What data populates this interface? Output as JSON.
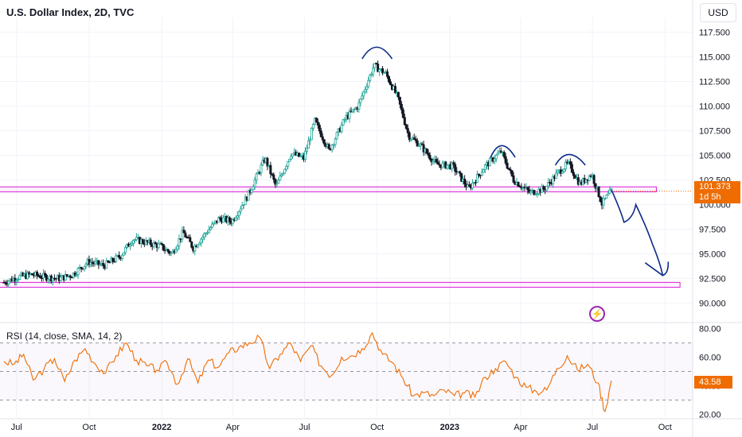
{
  "header": {
    "title": "U.S. Dollar Index, 2D, TVC",
    "currency": "USD"
  },
  "price_tag": {
    "price": "101.373",
    "countdown": "1d 5h"
  },
  "rsi_panel": {
    "title": "RSI (14, close, SMA, 14, 2)",
    "value": "43.58"
  },
  "icons": {
    "event": "lightning-icon"
  },
  "colors": {
    "up": "#26a69a",
    "down": "#131722",
    "rsi": "#ef6c00",
    "zone": "#d81bd8",
    "drawing": "#0d2b8a"
  },
  "chart_data": [
    {
      "type": "candlestick",
      "title": "U.S. Dollar Index, 2D, TVC",
      "y_ticks": [
        "117.500",
        "115.000",
        "112.500",
        "110.000",
        "107.500",
        "105.000",
        "102.500",
        "100.000",
        "97.500",
        "95.000",
        "92.500",
        "90.000"
      ],
      "ylim": [
        88.5,
        119
      ],
      "x_ticks": [
        "Jul",
        "Oct",
        "2022",
        "Apr",
        "Jul",
        "Oct",
        "2023",
        "Apr",
        "Jul",
        "Oct"
      ],
      "x_tick_dates": [
        "2021-07",
        "2021-10",
        "2022-01",
        "2022-04",
        "2022-07",
        "2022-10",
        "2023-01",
        "2023-04",
        "2023-07",
        "2023-10"
      ],
      "last_price": 101.373,
      "close_path": [
        [
          "2021-06-15",
          92.1
        ],
        [
          "2021-07-01",
          92.6
        ],
        [
          "2021-07-20",
          92.9
        ],
        [
          "2021-08-10",
          92.6
        ],
        [
          "2021-08-25",
          92.5
        ],
        [
          "2021-09-10",
          92.9
        ],
        [
          "2021-09-30",
          94.2
        ],
        [
          "2021-10-20",
          93.8
        ],
        [
          "2021-11-10",
          94.8
        ],
        [
          "2021-11-25",
          96.5
        ],
        [
          "2021-12-10",
          96.2
        ],
        [
          "2021-12-30",
          95.8
        ],
        [
          "2022-01-14",
          95.0
        ],
        [
          "2022-01-28",
          97.2
        ],
        [
          "2022-02-10",
          95.6
        ],
        [
          "2022-03-01",
          97.4
        ],
        [
          "2022-03-15",
          98.6
        ],
        [
          "2022-03-31",
          98.3
        ],
        [
          "2022-04-20",
          100.9
        ],
        [
          "2022-05-12",
          104.7
        ],
        [
          "2022-05-26",
          101.8
        ],
        [
          "2022-06-14",
          105.2
        ],
        [
          "2022-06-30",
          104.7
        ],
        [
          "2022-07-14",
          108.5
        ],
        [
          "2022-08-01",
          105.5
        ],
        [
          "2022-08-22",
          108.8
        ],
        [
          "2022-09-07",
          110.0
        ],
        [
          "2022-09-27",
          114.1
        ],
        [
          "2022-10-12",
          113.3
        ],
        [
          "2022-10-27",
          110.9
        ],
        [
          "2022-11-10",
          107.0
        ],
        [
          "2022-11-25",
          106.0
        ],
        [
          "2022-12-15",
          104.1
        ],
        [
          "2023-01-05",
          103.9
        ],
        [
          "2023-01-25",
          101.6
        ],
        [
          "2023-02-15",
          103.9
        ],
        [
          "2023-03-07",
          105.4
        ],
        [
          "2023-03-23",
          102.5
        ],
        [
          "2023-04-13",
          101.2
        ],
        [
          "2023-05-01",
          101.6
        ],
        [
          "2023-05-18",
          103.2
        ],
        [
          "2023-05-31",
          104.2
        ],
        [
          "2023-06-15",
          102.1
        ],
        [
          "2023-06-30",
          103.1
        ],
        [
          "2023-07-13",
          100.1
        ],
        [
          "2023-07-25",
          101.373
        ]
      ],
      "zones": [
        {
          "from": "2021-05-01",
          "to": "2023-09-20",
          "y_top": 101.8,
          "y_bottom": 101.3
        },
        {
          "from": "2021-05-01",
          "to": "2023-10-20",
          "y_top": 92.1,
          "y_bottom": 91.6
        }
      ],
      "projection": [
        [
          "2023-07-25",
          101.5
        ],
        [
          "2023-08-10",
          98.2
        ],
        [
          "2023-08-25",
          100.0
        ],
        [
          "2023-09-15",
          96.0
        ],
        [
          "2023-09-28",
          92.8
        ],
        [
          "2023-10-05",
          94.2
        ]
      ]
    },
    {
      "type": "line",
      "title": "RSI (14, close, SMA, 14, 2)",
      "y_ticks": [
        "80.00",
        "60.00",
        "40.00",
        "20.00"
      ],
      "ylim": [
        18,
        82
      ],
      "bands": [
        70,
        50,
        30
      ],
      "last_value": 43.58,
      "values": [
        [
          "2021-06-15",
          57
        ],
        [
          "2021-06-28",
          55
        ],
        [
          "2021-07-10",
          62
        ],
        [
          "2021-07-22",
          44
        ],
        [
          "2021-08-05",
          52
        ],
        [
          "2021-08-18",
          59
        ],
        [
          "2021-08-31",
          43
        ],
        [
          "2021-09-13",
          58
        ],
        [
          "2021-09-26",
          66
        ],
        [
          "2021-10-09",
          55
        ],
        [
          "2021-10-22",
          49
        ],
        [
          "2021-11-04",
          61
        ],
        [
          "2021-11-17",
          70
        ],
        [
          "2021-11-30",
          58
        ],
        [
          "2021-12-13",
          54
        ],
        [
          "2021-12-26",
          51
        ],
        [
          "2022-01-08",
          56
        ],
        [
          "2022-01-21",
          41
        ],
        [
          "2022-02-03",
          59
        ],
        [
          "2022-02-16",
          42
        ],
        [
          "2022-03-01",
          58
        ],
        [
          "2022-03-14",
          53
        ],
        [
          "2022-03-27",
          63
        ],
        [
          "2022-04-09",
          67
        ],
        [
          "2022-04-22",
          70
        ],
        [
          "2022-05-05",
          74
        ],
        [
          "2022-05-18",
          52
        ],
        [
          "2022-05-31",
          62
        ],
        [
          "2022-06-13",
          70
        ],
        [
          "2022-06-26",
          57
        ],
        [
          "2022-07-09",
          68
        ],
        [
          "2022-07-22",
          54
        ],
        [
          "2022-08-04",
          47
        ],
        [
          "2022-08-17",
          60
        ],
        [
          "2022-08-30",
          61
        ],
        [
          "2022-09-12",
          66
        ],
        [
          "2022-09-25",
          77
        ],
        [
          "2022-10-08",
          62
        ],
        [
          "2022-10-21",
          56
        ],
        [
          "2022-11-03",
          45
        ],
        [
          "2022-11-16",
          33
        ],
        [
          "2022-11-29",
          35
        ],
        [
          "2022-12-12",
          33
        ],
        [
          "2022-12-25",
          37
        ],
        [
          "2023-01-07",
          33
        ],
        [
          "2023-01-20",
          35
        ],
        [
          "2023-02-02",
          32
        ],
        [
          "2023-02-15",
          46
        ],
        [
          "2023-02-28",
          52
        ],
        [
          "2023-03-13",
          57
        ],
        [
          "2023-03-26",
          46
        ],
        [
          "2023-04-08",
          39
        ],
        [
          "2023-04-21",
          36
        ],
        [
          "2023-05-04",
          37
        ],
        [
          "2023-05-17",
          52
        ],
        [
          "2023-05-30",
          61
        ],
        [
          "2023-06-12",
          51
        ],
        [
          "2023-06-25",
          55
        ],
        [
          "2023-07-08",
          42
        ],
        [
          "2023-07-17",
          22
        ],
        [
          "2023-07-25",
          43.58
        ]
      ]
    }
  ]
}
